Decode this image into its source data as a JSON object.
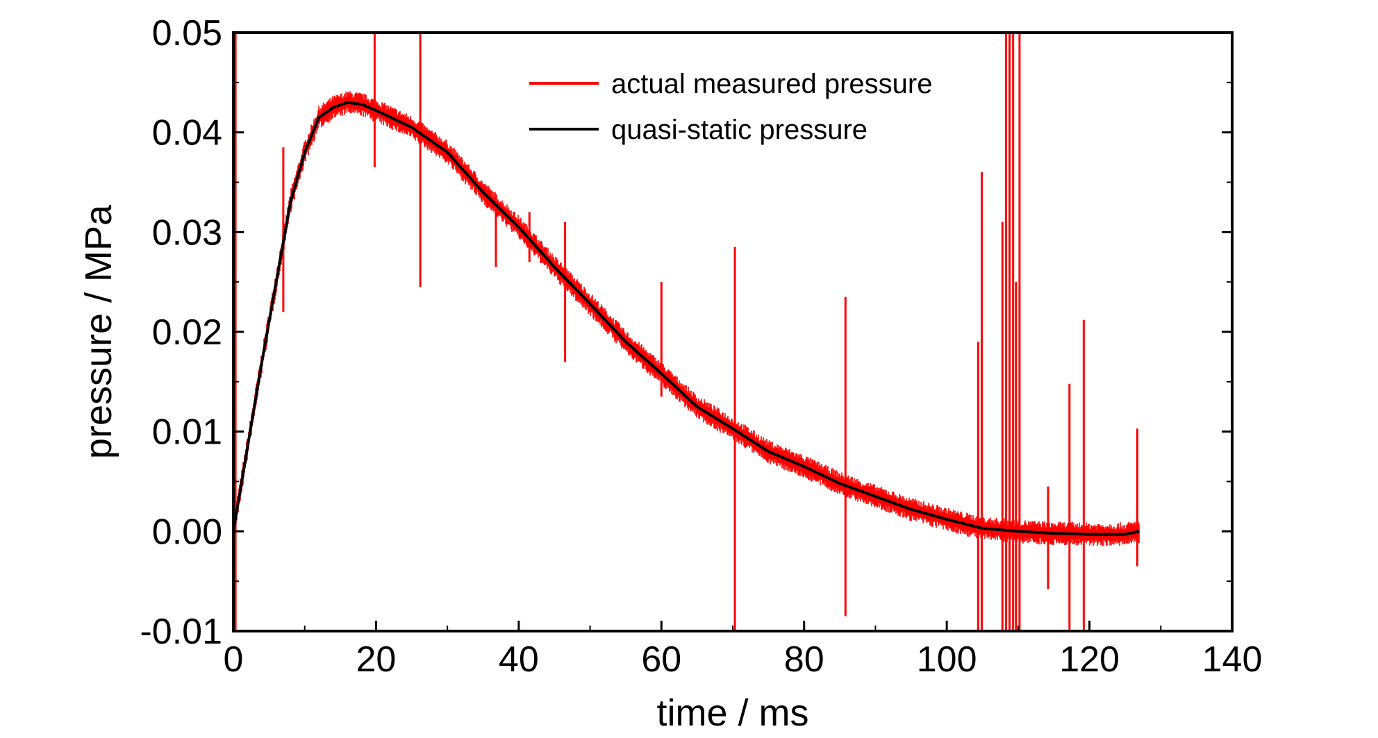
{
  "chart_data": {
    "type": "line",
    "title": "",
    "xlabel": "time / ms",
    "ylabel": "pressure / MPa",
    "xlim": [
      0,
      140
    ],
    "ylim": [
      -0.01,
      0.05
    ],
    "x_ticks": [
      0,
      20,
      40,
      60,
      80,
      100,
      120,
      140
    ],
    "x_tick_labels": [
      "0",
      "20",
      "40",
      "60",
      "80",
      "100",
      "120",
      "140"
    ],
    "y_ticks": [
      -0.01,
      0.0,
      0.01,
      0.02,
      0.03,
      0.04,
      0.05
    ],
    "y_tick_labels": [
      "-0.01",
      "0.00",
      "0.01",
      "0.02",
      "0.03",
      "0.04",
      "0.05"
    ],
    "grid": false,
    "legend_position": "top-center",
    "series": [
      {
        "name": "actual measured pressure",
        "color": "#ff0000",
        "noise_band": 0.0012,
        "x": [
          0,
          2,
          4,
          6,
          8,
          10,
          12,
          14,
          16,
          18,
          20,
          25,
          30,
          35,
          40,
          45,
          50,
          55,
          60,
          65,
          70,
          75,
          80,
          85,
          90,
          95,
          100,
          105,
          110,
          115,
          120,
          125,
          127
        ],
        "y": [
          0.0,
          0.0085,
          0.017,
          0.025,
          0.033,
          0.038,
          0.0415,
          0.0425,
          0.043,
          0.0428,
          0.0422,
          0.0405,
          0.038,
          0.034,
          0.0305,
          0.0265,
          0.0228,
          0.019,
          0.0158,
          0.0125,
          0.0103,
          0.008,
          0.0065,
          0.0048,
          0.0035,
          0.0022,
          0.0012,
          0.0003,
          0.0,
          -0.0002,
          -0.0003,
          -0.0003,
          0.0
        ],
        "spikes": [
          {
            "x": 0.3,
            "y_min": -0.01,
            "y_max": 0.05
          },
          {
            "x": 7.0,
            "y_min": 0.022,
            "y_max": 0.0385
          },
          {
            "x": 19.8,
            "y_min": 0.0365,
            "y_max": 0.05
          },
          {
            "x": 26.2,
            "y_min": 0.0245,
            "y_max": 0.05
          },
          {
            "x": 36.8,
            "y_min": 0.0265,
            "y_max": 0.033
          },
          {
            "x": 41.5,
            "y_min": 0.027,
            "y_max": 0.032
          },
          {
            "x": 46.5,
            "y_min": 0.017,
            "y_max": 0.031
          },
          {
            "x": 60.0,
            "y_min": 0.0135,
            "y_max": 0.025
          },
          {
            "x": 70.3,
            "y_min": -0.01,
            "y_max": 0.0285
          },
          {
            "x": 85.8,
            "y_min": -0.0085,
            "y_max": 0.0235
          },
          {
            "x": 104.4,
            "y_min": -0.01,
            "y_max": 0.019
          },
          {
            "x": 104.9,
            "y_min": -0.01,
            "y_max": 0.036
          },
          {
            "x": 107.8,
            "y_min": -0.01,
            "y_max": 0.031
          },
          {
            "x": 108.3,
            "y_min": -0.01,
            "y_max": 0.05
          },
          {
            "x": 108.8,
            "y_min": -0.01,
            "y_max": 0.05
          },
          {
            "x": 109.3,
            "y_min": -0.01,
            "y_max": 0.05
          },
          {
            "x": 109.7,
            "y_min": -0.01,
            "y_max": 0.025
          },
          {
            "x": 110.2,
            "y_min": -0.01,
            "y_max": 0.05
          },
          {
            "x": 114.2,
            "y_min": -0.0058,
            "y_max": 0.0045
          },
          {
            "x": 117.2,
            "y_min": -0.01,
            "y_max": 0.0148
          },
          {
            "x": 119.2,
            "y_min": -0.01,
            "y_max": 0.0212
          },
          {
            "x": 126.7,
            "y_min": -0.0035,
            "y_max": 0.0103
          }
        ]
      },
      {
        "name": "quasi-static pressure",
        "color": "#000000",
        "x": [
          0,
          2,
          4,
          6,
          8,
          10,
          12,
          14,
          16,
          18,
          20,
          25,
          30,
          35,
          40,
          45,
          50,
          55,
          60,
          65,
          70,
          75,
          80,
          85,
          90,
          95,
          100,
          105,
          110,
          115,
          120,
          125,
          127
        ],
        "y": [
          0.0,
          0.0085,
          0.017,
          0.025,
          0.033,
          0.038,
          0.0415,
          0.0425,
          0.043,
          0.0428,
          0.0422,
          0.0405,
          0.038,
          0.034,
          0.0305,
          0.0265,
          0.0228,
          0.019,
          0.0158,
          0.0125,
          0.0103,
          0.008,
          0.0065,
          0.0048,
          0.0035,
          0.0022,
          0.0012,
          0.0003,
          0.0,
          -0.0002,
          -0.0003,
          -0.0003,
          0.0
        ]
      }
    ]
  }
}
